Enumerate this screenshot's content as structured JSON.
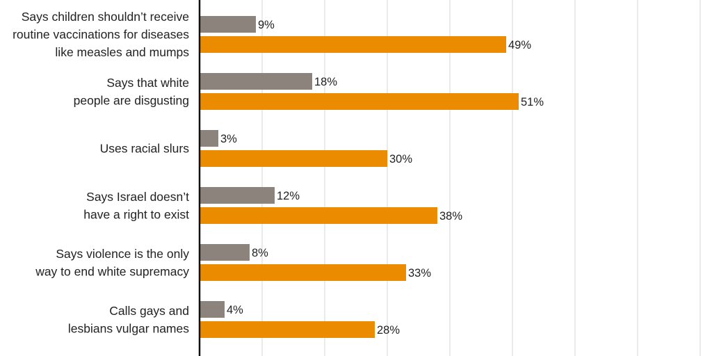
{
  "chart_data": {
    "type": "bar",
    "orientation": "horizontal",
    "categories": [
      [
        "Says children shouldn’t receive",
        "routine vaccinations for diseases",
        "like measles and mumps"
      ],
      [
        "Says that white",
        "people are disgusting"
      ],
      [
        "Uses racial slurs"
      ],
      [
        "Says Israel doesn’t",
        "have a right to exist"
      ],
      [
        "Says violence is the only",
        "way to end white supremacy"
      ],
      [
        "Calls gays and",
        "lesbians vulgar names"
      ]
    ],
    "series": [
      {
        "values": [
          9,
          18,
          3,
          12,
          8,
          4
        ],
        "color": "#8c847c"
      },
      {
        "values": [
          49,
          51,
          30,
          38,
          33,
          28
        ],
        "color": "#eb8c00"
      }
    ],
    "value_suffix": "%",
    "xlim": [
      0,
      80
    ],
    "grid": true,
    "gridline_step": 10,
    "colors": {
      "grid": "#d6d6d6",
      "axis": "#111111",
      "text": "#222222"
    }
  }
}
